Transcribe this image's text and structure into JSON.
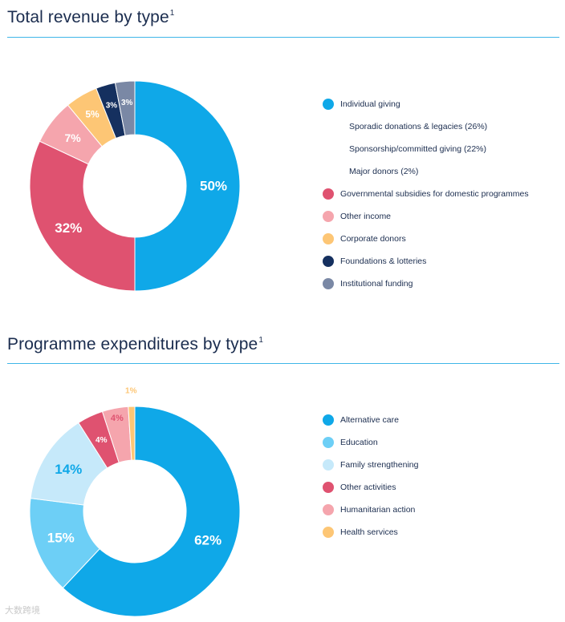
{
  "chart_data": [
    {
      "type": "pie",
      "title": "Total revenue by type",
      "title_footnote": "1",
      "categories": [
        "Individual giving",
        "Governmental subsidies for domestic programmes",
        "Other income",
        "Corporate donors",
        "Foundations & lotteries",
        "Institutional funding"
      ],
      "values": [
        50,
        32,
        7,
        5,
        3,
        3
      ],
      "slice_labels": [
        "50%",
        "32%",
        "7%",
        "5%",
        "3%",
        "3%"
      ],
      "colors": [
        "#0fa8e8",
        "#df5270",
        "#f5a5ad",
        "#fdc675",
        "#15305f",
        "#7a88a5"
      ],
      "label_colors": [
        "#ffffff",
        "#ffffff",
        "#ffffff",
        "#ffffff",
        "#ffffff",
        "#ffffff"
      ],
      "legend": [
        {
          "label": "Individual giving",
          "color": "#0fa8e8",
          "sub": false
        },
        {
          "label": "Sporadic donations & legacies (26%)",
          "color": null,
          "sub": true
        },
        {
          "label": "Sponsorship/committed giving (22%)",
          "color": null,
          "sub": true
        },
        {
          "label": "Major donors (2%)",
          "color": null,
          "sub": true
        },
        {
          "label": "Governmental subsidies for domestic programmes",
          "color": "#df5270",
          "sub": false
        },
        {
          "label": "Other income",
          "color": "#f5a5ad",
          "sub": false
        },
        {
          "label": "Corporate donors",
          "color": "#fdc675",
          "sub": false
        },
        {
          "label": "Foundations & lotteries",
          "color": "#15305f",
          "sub": false
        },
        {
          "label": "Institutional funding",
          "color": "#7a88a5",
          "sub": false
        }
      ]
    },
    {
      "type": "pie",
      "title": "Programme expenditures by type",
      "title_footnote": "1",
      "categories": [
        "Alternative care",
        "Education",
        "Family strengthening",
        "Other activities",
        "Humanitarian action",
        "Health services"
      ],
      "values": [
        62,
        15,
        14,
        4,
        4,
        1
      ],
      "slice_labels": [
        "62%",
        "15%",
        "14%",
        "4%",
        "4%",
        "1%"
      ],
      "colors": [
        "#0fa8e8",
        "#6dcff6",
        "#c6e9fa",
        "#df5270",
        "#f5a5ad",
        "#fdc675"
      ],
      "label_colors": [
        "#ffffff",
        "#ffffff",
        "#0fa8e8",
        "#ffffff",
        "#df5270",
        "#fdc675"
      ],
      "legend": [
        {
          "label": "Alternative care",
          "color": "#0fa8e8",
          "sub": false
        },
        {
          "label": "Education",
          "color": "#6dcff6",
          "sub": false
        },
        {
          "label": "Family strengthening",
          "color": "#c6e9fa",
          "sub": false
        },
        {
          "label": "Other activities",
          "color": "#df5270",
          "sub": false
        },
        {
          "label": "Humanitarian action",
          "color": "#f5a5ad",
          "sub": false
        },
        {
          "label": "Health services",
          "color": "#fdc675",
          "sub": false
        }
      ]
    }
  ],
  "watermark": "大数跨境"
}
